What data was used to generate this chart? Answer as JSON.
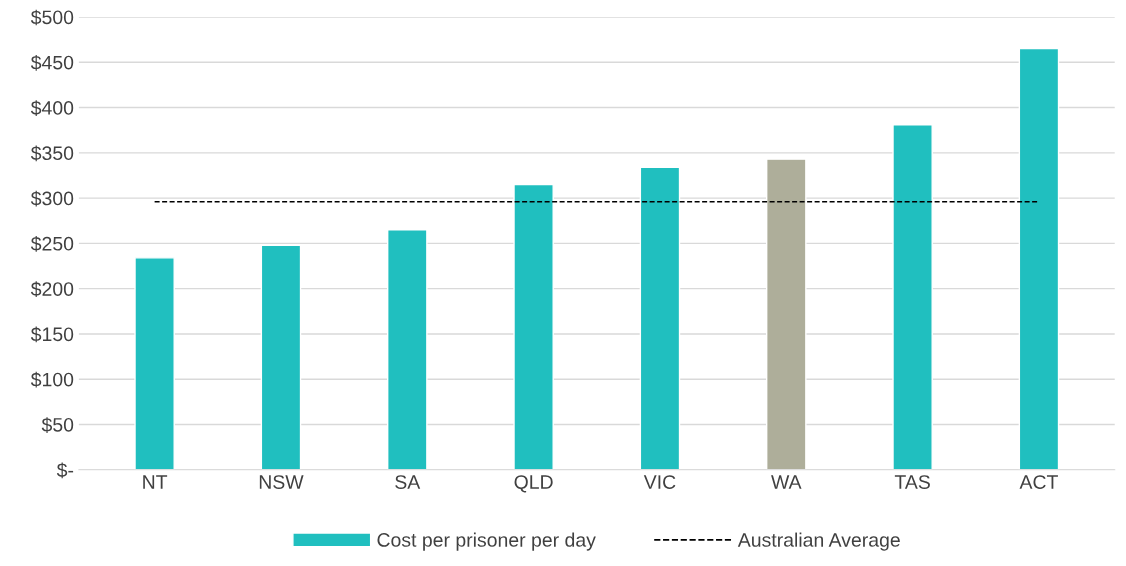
{
  "chart_data": {
    "type": "bar",
    "categories": [
      "NT",
      "NSW",
      "SA",
      "QLD",
      "VIC",
      "WA",
      "TAS",
      "ACT"
    ],
    "series": [
      {
        "name": "Cost per prisoner per day",
        "color": "#20bfbf",
        "colors": [
          "#20bfbf",
          "#20bfbf",
          "#20bfbf",
          "#20bfbf",
          "#20bfbf",
          "#aeae9a",
          "#20bfbf",
          "#20bfbf"
        ],
        "values": [
          234,
          248,
          265,
          315,
          334,
          343,
          381,
          465
        ]
      },
      {
        "name": "Australian Average",
        "type": "line",
        "color": "#000000",
        "line_style": "dashed",
        "marker": "none",
        "values": [
          296,
          296,
          296,
          296,
          296,
          296,
          296,
          296
        ]
      }
    ],
    "ylim": [
      0,
      500
    ],
    "yticks": [
      {
        "value": 0,
        "label": "$-"
      },
      {
        "value": 50,
        "label": "$50"
      },
      {
        "value": 100,
        "label": "$100"
      },
      {
        "value": 150,
        "label": "$150"
      },
      {
        "value": 200,
        "label": "$200"
      },
      {
        "value": 250,
        "label": "$250"
      },
      {
        "value": 300,
        "label": "$300"
      },
      {
        "value": 350,
        "label": "$350"
      },
      {
        "value": 400,
        "label": "$400"
      },
      {
        "value": 450,
        "label": "$450"
      },
      {
        "value": 500,
        "label": "$500"
      }
    ],
    "grid": "y",
    "legend": "bottom"
  }
}
